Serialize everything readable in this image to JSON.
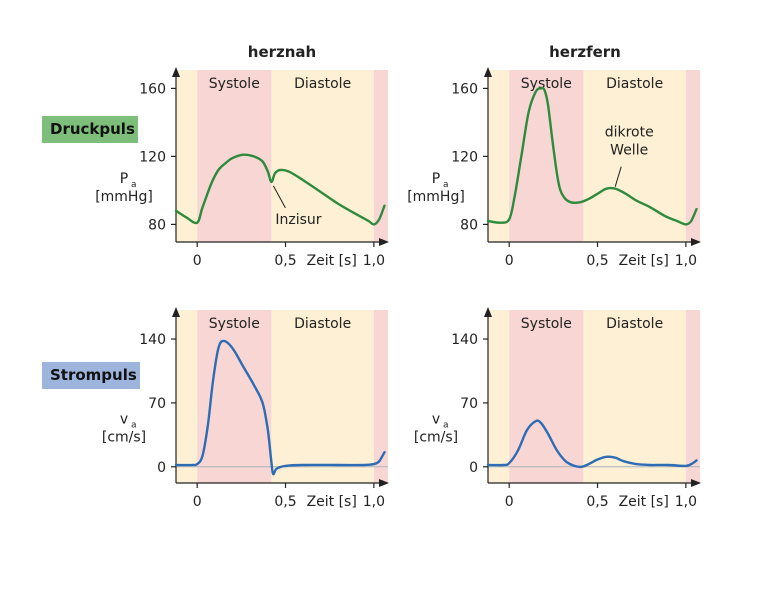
{
  "labels": {
    "col_left": "herznah",
    "col_right": "herzfern",
    "row_top": "Druckpuls",
    "row_bottom": "Strompuls",
    "systole": "Systole",
    "diastole": "Diastole",
    "time_unit": "Zeit [s]",
    "pressure_symbol": "P",
    "pressure_sub": "a",
    "pressure_unit": "[mmHg]",
    "velocity_symbol": "v",
    "velocity_sub": "a",
    "velocity_unit": "[cm/s]",
    "incisura": "Inzisur",
    "dicrotic_line1": "dikrote",
    "dicrotic_line2": "Welle"
  },
  "colors": {
    "pressure_line": "#2e8b3d",
    "velocity_line": "#2e6db4",
    "systole_band": "#f7d6d3",
    "diastole_band": "#fdf0d4",
    "druckpuls_badge": "#7dbf7a",
    "strompuls_badge": "#9db5dd"
  },
  "chart_data": [
    {
      "type": "line",
      "title": "herznah",
      "xlabel": "Zeit [s]",
      "ylabel": "Pa [mmHg]",
      "x_ticks": [
        {
          "value": 0,
          "label": "0"
        },
        {
          "value": 0.5,
          "label": "0,5"
        },
        {
          "value": 1.0,
          "label": "1,0"
        }
      ],
      "y_ticks": [
        {
          "value": 80,
          "label": "80"
        },
        {
          "value": 120,
          "label": "120"
        },
        {
          "value": 160,
          "label": "160"
        }
      ],
      "xlim": [
        -0.12,
        1.08
      ],
      "ylim": [
        62,
        172
      ],
      "phases": {
        "systole": [
          0,
          0.42
        ],
        "diastole": [
          0.42,
          1.0
        ]
      },
      "series": [
        {
          "x": [
            -0.12,
            -0.06,
            0,
            0.03,
            0.08,
            0.12,
            0.16,
            0.2,
            0.26,
            0.32,
            0.37,
            0.4,
            0.42,
            0.44,
            0.47,
            0.52,
            0.6,
            0.7,
            0.8,
            0.9,
            0.97,
            1.0,
            1.03,
            1.06
          ],
          "y": [
            88,
            84,
            81,
            90,
            104,
            112,
            116,
            119,
            121,
            120,
            117,
            111,
            105,
            110,
            112,
            111,
            106,
            99,
            92,
            86,
            82,
            80,
            83,
            91
          ]
        }
      ],
      "annotations": [
        {
          "text": "Inzisur",
          "x": 0.42,
          "y": 105
        }
      ]
    },
    {
      "type": "line",
      "title": "herzfern",
      "xlabel": "Zeit [s]",
      "ylabel": "Pa [mmHg]",
      "x_ticks": [
        {
          "value": 0,
          "label": "0"
        },
        {
          "value": 0.5,
          "label": "0,5"
        },
        {
          "value": 1.0,
          "label": "1,0"
        }
      ],
      "y_ticks": [
        {
          "value": 80,
          "label": "80"
        },
        {
          "value": 120,
          "label": "120"
        },
        {
          "value": 160,
          "label": "160"
        }
      ],
      "xlim": [
        -0.12,
        1.08
      ],
      "ylim": [
        62,
        172
      ],
      "phases": {
        "systole": [
          0,
          0.42
        ],
        "diastole": [
          0.42,
          1.0
        ]
      },
      "series": [
        {
          "x": [
            -0.12,
            -0.05,
            0,
            0.03,
            0.07,
            0.11,
            0.15,
            0.18,
            0.2,
            0.22,
            0.25,
            0.28,
            0.31,
            0.35,
            0.4,
            0.45,
            0.5,
            0.55,
            0.6,
            0.66,
            0.72,
            0.8,
            0.88,
            0.95,
            1.0,
            1.03,
            1.06
          ],
          "y": [
            82,
            81,
            83,
            96,
            121,
            146,
            158,
            160,
            159,
            150,
            125,
            104,
            96,
            93,
            93,
            95,
            98,
            101,
            101,
            98,
            94,
            90,
            85,
            82,
            80,
            82,
            89
          ]
        }
      ],
      "annotations": [
        {
          "text": "dikrote Welle",
          "x": 0.6,
          "y": 101
        }
      ]
    },
    {
      "type": "line",
      "title": "herznah",
      "xlabel": "Zeit [s]",
      "ylabel": "va [cm/s]",
      "x_ticks": [
        {
          "value": 0,
          "label": "0"
        },
        {
          "value": 0.5,
          "label": "0,5"
        },
        {
          "value": 1.0,
          "label": "1,0"
        }
      ],
      "y_ticks": [
        {
          "value": 0,
          "label": "0"
        },
        {
          "value": 70,
          "label": "70"
        },
        {
          "value": 140,
          "label": "140"
        }
      ],
      "xlim": [
        -0.12,
        1.08
      ],
      "ylim": [
        -32,
        174
      ],
      "phases": {
        "systole": [
          0,
          0.42
        ],
        "diastole": [
          0.42,
          1.0
        ]
      },
      "series": [
        {
          "x": [
            -0.12,
            -0.03,
            0,
            0.03,
            0.06,
            0.09,
            0.12,
            0.15,
            0.2,
            0.26,
            0.32,
            0.37,
            0.4,
            0.42,
            0.43,
            0.45,
            0.5,
            0.6,
            0.8,
            0.95,
            1.0,
            1.03,
            1.06
          ],
          "y": [
            2,
            2,
            3,
            12,
            45,
            95,
            130,
            138,
            130,
            110,
            90,
            70,
            40,
            5,
            -8,
            -2,
            1,
            2,
            2,
            2,
            3,
            6,
            16
          ]
        }
      ]
    },
    {
      "type": "line",
      "title": "herzfern",
      "xlabel": "Zeit [s]",
      "ylabel": "va [cm/s]",
      "x_ticks": [
        {
          "value": 0,
          "label": "0"
        },
        {
          "value": 0.5,
          "label": "0,5"
        },
        {
          "value": 1.0,
          "label": "1,0"
        }
      ],
      "y_ticks": [
        {
          "value": 0,
          "label": "0"
        },
        {
          "value": 70,
          "label": "70"
        },
        {
          "value": 140,
          "label": "140"
        }
      ],
      "xlim": [
        -0.12,
        1.08
      ],
      "ylim": [
        -32,
        174
      ],
      "phases": {
        "systole": [
          0,
          0.42
        ],
        "diastole": [
          0.42,
          1.0
        ]
      },
      "series": [
        {
          "x": [
            -0.12,
            -0.03,
            0,
            0.05,
            0.1,
            0.15,
            0.18,
            0.22,
            0.27,
            0.32,
            0.37,
            0.41,
            0.45,
            0.5,
            0.55,
            0.6,
            0.65,
            0.72,
            0.8,
            0.9,
            1.0,
            1.04,
            1.06
          ],
          "y": [
            2,
            2,
            4,
            18,
            40,
            50,
            48,
            36,
            18,
            6,
            1,
            0,
            3,
            8,
            11,
            10,
            6,
            3,
            2,
            2,
            1,
            4,
            7
          ]
        }
      ]
    }
  ]
}
